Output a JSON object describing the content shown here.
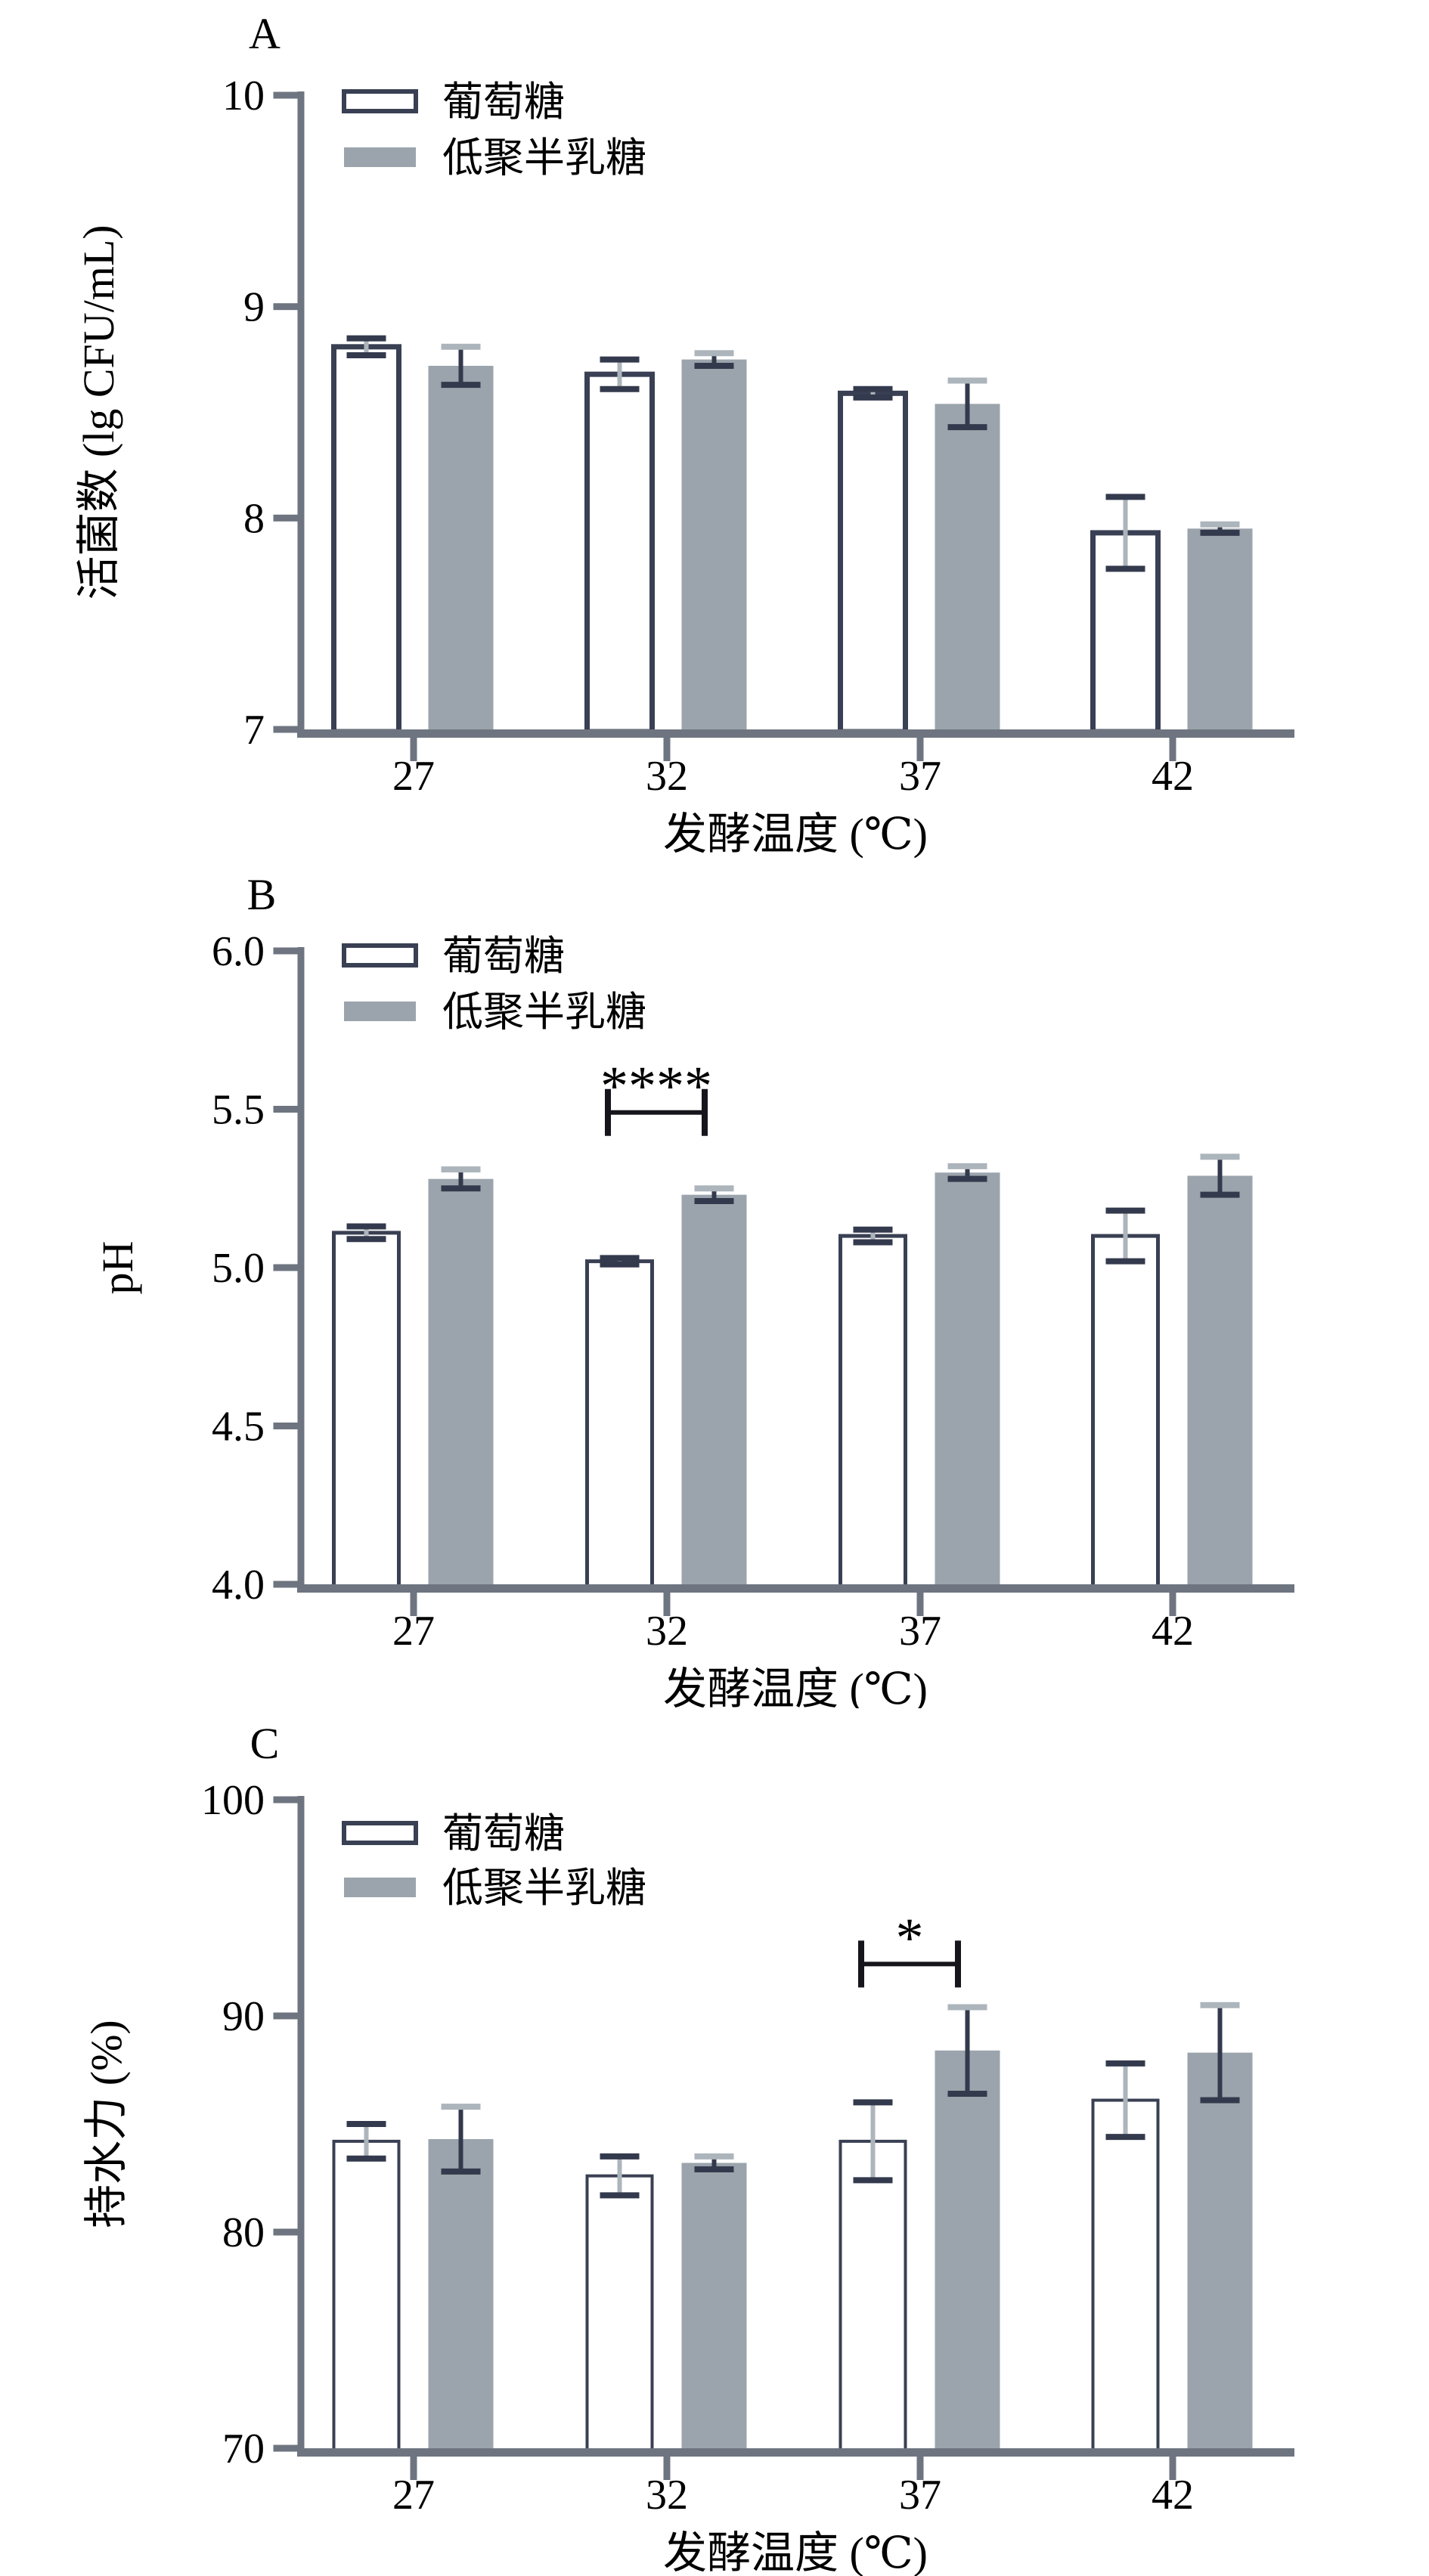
{
  "figure": {
    "background": "#ffffff"
  },
  "colors": {
    "bar_outline": "#3a4053",
    "bar_fill_gray": "#9ba4ac",
    "axis_gray": "#6e7580",
    "error_dark": "#343a4d",
    "error_light": "#adb5bc",
    "text": "#000000",
    "bracket": "#15151b"
  },
  "legend": {
    "glucose_label": "葡萄糖",
    "gos_label": "低聚半乳糖"
  },
  "chart_data": [
    {
      "type": "bar",
      "panel_label": "A",
      "title": "",
      "xlabel": "发酵温度 (℃)",
      "ylabel": "活菌数 (lg CFU/mL)",
      "categories": [
        "27",
        "32",
        "37",
        "42"
      ],
      "ylim": [
        7,
        10
      ],
      "yticks": [
        7,
        8,
        9,
        10
      ],
      "ytick_labels": [
        "7",
        "8",
        "9",
        "10"
      ],
      "grid": false,
      "legend_position": "top-left-inside",
      "series": [
        {
          "name": "葡萄糖",
          "style": "outline",
          "values": [
            8.81,
            8.68,
            8.59,
            7.93
          ],
          "errors": [
            0.04,
            0.07,
            0.02,
            0.17
          ]
        },
        {
          "name": "低聚半乳糖",
          "style": "solid",
          "values": [
            8.72,
            8.75,
            8.54,
            7.95
          ],
          "errors": [
            0.09,
            0.03,
            0.11,
            0.02
          ]
        }
      ],
      "annotation": null
    },
    {
      "type": "bar",
      "panel_label": "B",
      "title": "",
      "xlabel": "发酵温度 (℃)",
      "ylabel": "pH",
      "categories": [
        "27",
        "32",
        "37",
        "42"
      ],
      "ylim": [
        4.0,
        6.0
      ],
      "yticks": [
        4.0,
        4.5,
        5.0,
        5.5,
        6.0
      ],
      "ytick_labels": [
        "4.0",
        "4.5",
        "5.0",
        "5.5",
        "6.0"
      ],
      "grid": false,
      "legend_position": "top-left-inside",
      "series": [
        {
          "name": "葡萄糖",
          "style": "outline",
          "values": [
            5.11,
            5.02,
            5.1,
            5.1
          ],
          "errors": [
            0.02,
            0.01,
            0.02,
            0.08
          ]
        },
        {
          "name": "低聚半乳糖",
          "style": "solid",
          "values": [
            5.28,
            5.23,
            5.3,
            5.29
          ],
          "errors": [
            0.03,
            0.02,
            0.02,
            0.06
          ]
        }
      ],
      "annotation": {
        "label": "****",
        "category_index": 1,
        "between": [
          "葡萄糖",
          "低聚半乳糖"
        ],
        "y": 5.49
      }
    },
    {
      "type": "bar",
      "panel_label": "C",
      "title": "",
      "xlabel": "发酵温度 (℃)",
      "ylabel": "持水力 (%)",
      "categories": [
        "27",
        "32",
        "37",
        "42"
      ],
      "ylim": [
        70,
        100
      ],
      "yticks": [
        70,
        80,
        90,
        100
      ],
      "ytick_labels": [
        "70",
        "80",
        "90",
        "100"
      ],
      "grid": false,
      "legend_position": "top-left-inside",
      "series": [
        {
          "name": "葡萄糖",
          "style": "outline",
          "values": [
            84.2,
            82.6,
            84.2,
            86.1
          ],
          "errors": [
            0.8,
            0.9,
            1.8,
            1.7
          ]
        },
        {
          "name": "低聚半乳糖",
          "style": "solid",
          "values": [
            84.3,
            83.2,
            88.4,
            88.3
          ],
          "errors": [
            1.5,
            0.3,
            2.0,
            2.2
          ]
        }
      ],
      "annotation": {
        "label": "*",
        "category_index": 2,
        "between": [
          "葡萄糖",
          "低聚半乳糖"
        ],
        "y": 92.4
      }
    }
  ]
}
